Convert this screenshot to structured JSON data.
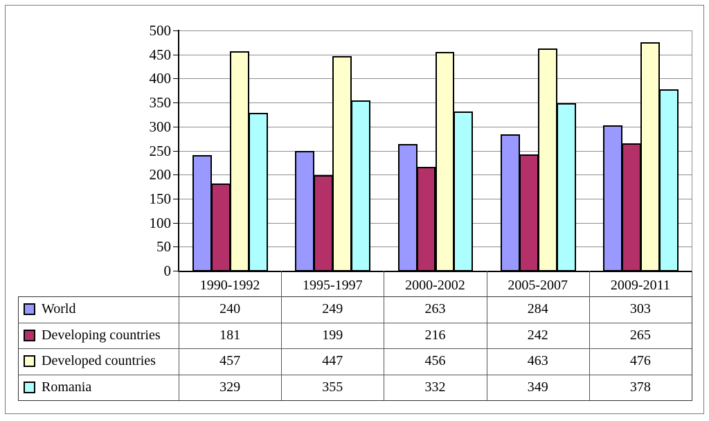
{
  "chart_data": {
    "type": "bar",
    "title": "",
    "xlabel": "",
    "ylabel": "",
    "categories": [
      "1990-1992",
      "1995-1997",
      "2000-2002",
      "2005-2007",
      "2009-2011"
    ],
    "series": [
      {
        "name": "World",
        "color": "#9999FF",
        "values": [
          240,
          249,
          263,
          284,
          303
        ]
      },
      {
        "name": "Developing countries",
        "color": "#B33068",
        "values": [
          181,
          199,
          216,
          242,
          265
        ]
      },
      {
        "name": "Developed countries",
        "color": "#FFFFCC",
        "values": [
          457,
          447,
          456,
          463,
          476
        ]
      },
      {
        "name": "Romania",
        "color": "#ADFFFF",
        "values": [
          329,
          355,
          332,
          349,
          378
        ]
      }
    ],
    "ylim": [
      0,
      500
    ],
    "y_tick_step": 50,
    "grid": "horizontal",
    "legend_position": "data-table-left-column"
  },
  "colors": {
    "gridline": "#8e8e8e",
    "axis": "#000000",
    "bar_outline": "#000000",
    "table_outline": "#333333",
    "table_inner": "#555555",
    "figure_border": "#7a7a7a",
    "background": "#ffffff"
  }
}
